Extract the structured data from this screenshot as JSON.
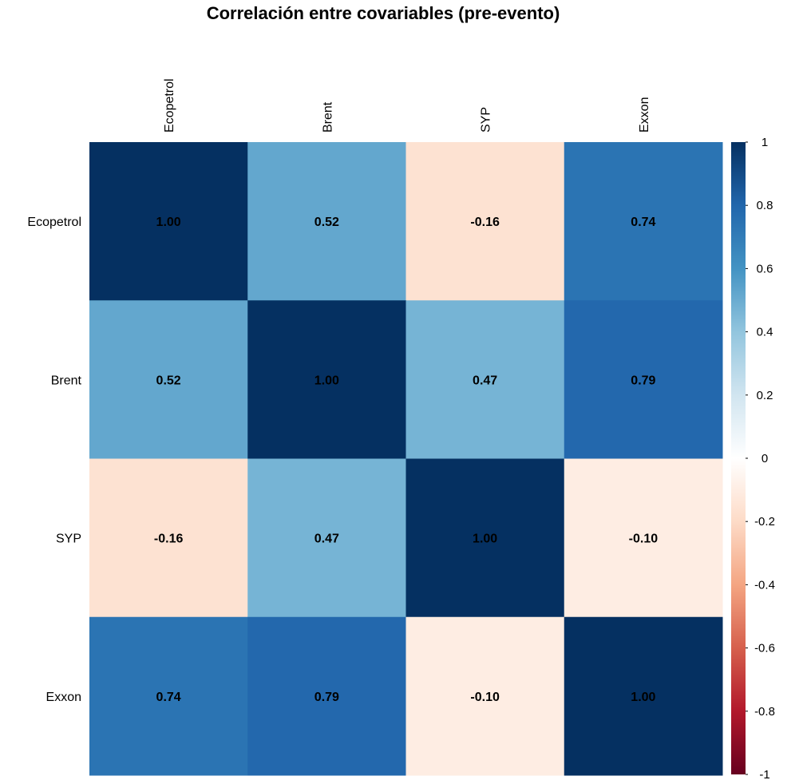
{
  "chart_data": {
    "type": "heatmap",
    "title": "Correlación entre covariables (pre-evento)",
    "variables": [
      "Ecopetrol",
      "Brent",
      "SYP",
      "Exxon"
    ],
    "matrix": [
      [
        1.0,
        0.52,
        -0.16,
        0.74
      ],
      [
        0.52,
        1.0,
        0.47,
        0.79
      ],
      [
        -0.16,
        0.47,
        1.0,
        -0.1
      ],
      [
        0.74,
        0.79,
        -0.1,
        1.0
      ]
    ],
    "value_labels": [
      [
        "1.00",
        "0.52",
        "-0.16",
        "0.74"
      ],
      [
        "0.52",
        "1.00",
        "0.47",
        "0.79"
      ],
      [
        "-0.16",
        "0.47",
        "1.00",
        "-0.10"
      ],
      [
        "0.74",
        "0.79",
        "-0.10",
        "1.00"
      ]
    ],
    "colorbar": {
      "range": [
        -1,
        1
      ],
      "ticks": [
        1,
        0.8,
        0.6,
        0.4,
        0.2,
        0,
        -0.2,
        -0.4,
        -0.6,
        -0.8,
        -1
      ],
      "tick_labels": [
        "1",
        "0.8",
        "0.6",
        "0.4",
        "0.2",
        "0",
        "-0.2",
        "-0.4",
        "-0.6",
        "-0.8",
        "-1"
      ],
      "colors": [
        "#67001F",
        "#B2182B",
        "#D6604D",
        "#F4A582",
        "#FDDBC7",
        "#FFFFFF",
        "#D1E5F0",
        "#92C5DE",
        "#4393C3",
        "#2166AC",
        "#053061"
      ]
    }
  }
}
